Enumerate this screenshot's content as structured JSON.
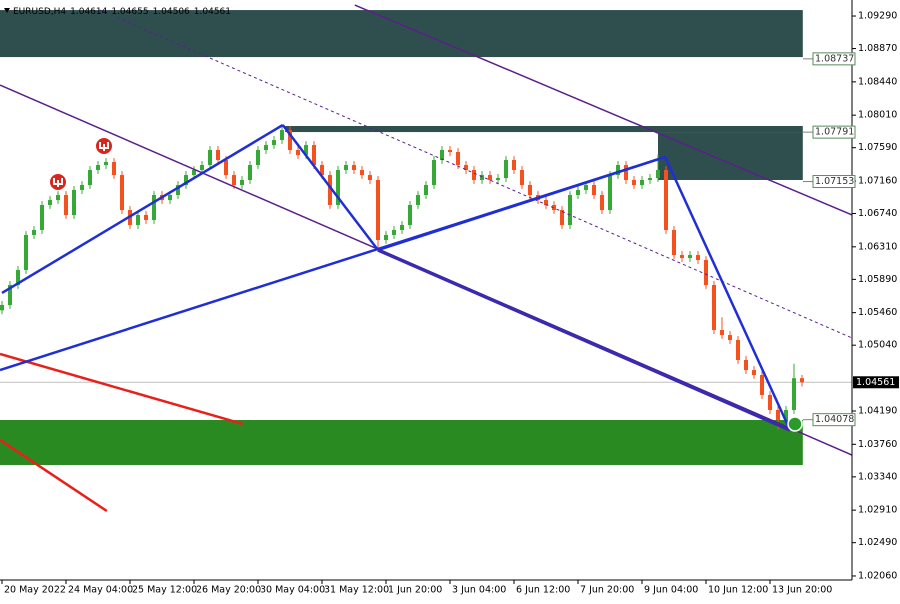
{
  "chart_data": {
    "type": "candlestick",
    "symbol": "EURUSD,H4",
    "up_color": "#36a836",
    "down_color": "#f4511e",
    "xlim": [
      -0.25,
      106.25
    ],
    "ylim": [
      1.02008,
      1.09497
    ],
    "xticks": [
      {
        "value": 0,
        "label": "20 May 2022"
      },
      {
        "value": 8,
        "label": "24 May 04:00"
      },
      {
        "value": 16,
        "label": "25 May 12:00"
      },
      {
        "value": 24,
        "label": "26 May 20:00"
      },
      {
        "value": 32,
        "label": "30 May 04:00"
      },
      {
        "value": 40,
        "label": "31 May 12:00"
      },
      {
        "value": 48,
        "label": "1 Jun 20:00"
      },
      {
        "value": 56,
        "label": "3 Jun 04:00"
      },
      {
        "value": 64,
        "label": "6 Jun 12:00"
      },
      {
        "value": 72,
        "label": "7 Jun 20:00"
      },
      {
        "value": 80,
        "label": "9 Jun 04:00"
      },
      {
        "value": 88,
        "label": "10 Jun 12:00"
      },
      {
        "value": 96,
        "label": "13 Jun 20:00"
      }
    ],
    "yticks": [
      {
        "value": 1.0929,
        "label": "1.09290"
      },
      {
        "value": 1.0887,
        "label": "1.08870"
      },
      {
        "value": 1.0844,
        "label": "1.08440"
      },
      {
        "value": 1.0801,
        "label": "1.08010"
      },
      {
        "value": 1.0759,
        "label": "1.07590"
      },
      {
        "value": 1.0716,
        "label": "1.07160"
      },
      {
        "value": 1.0674,
        "label": "1.06740"
      },
      {
        "value": 1.0631,
        "label": "1.06310"
      },
      {
        "value": 1.0589,
        "label": "1.05890"
      },
      {
        "value": 1.0546,
        "label": "1.05460"
      },
      {
        "value": 1.0504,
        "label": "1.05040"
      },
      {
        "value": 1.0419,
        "label": "1.04190"
      },
      {
        "value": 1.0376,
        "label": "1.03760"
      },
      {
        "value": 1.0334,
        "label": "1.03340"
      },
      {
        "value": 1.0291,
        "label": "1.02910"
      },
      {
        "value": 1.0249,
        "label": "1.02490"
      },
      {
        "value": 1.0206,
        "label": "1.02060"
      }
    ],
    "open": [
      1.0549,
      1.05559,
      1.05817,
      1.06011,
      1.06463,
      1.06527,
      1.0685,
      1.06914,
      1.06979,
      1.06721,
      1.07044,
      1.07108,
      1.07302,
      1.07366,
      1.07405,
      1.07237,
      1.06785,
      1.06592,
      1.06721,
      1.06656,
      1.06979,
      1.06914,
      1.06979,
      1.07108,
      1.07237,
      1.07302,
      1.07366,
      1.0756,
      1.07431,
      1.07237,
      1.07108,
      1.07173,
      1.07366,
      1.0756,
      1.07624,
      1.07689,
      1.07818,
      1.0756,
      1.07495,
      1.07624,
      1.07366,
      1.07237,
      1.0685,
      1.07302,
      1.07366,
      1.07302,
      1.07237,
      1.07173,
      1.06398,
      1.06463,
      1.06527,
      1.06592,
      1.0685,
      1.06979,
      1.07108,
      1.07431,
      1.0756,
      1.07534,
      1.07366,
      1.07302,
      1.07173,
      1.07237,
      1.07173,
      1.07198,
      1.07431,
      1.07302,
      1.07108,
      1.06979,
      1.06914,
      1.0685,
      1.06785,
      1.06592,
      1.06979,
      1.07044,
      1.07108,
      1.06979,
      1.06785,
      1.07237,
      1.07366,
      1.07173,
      1.07108,
      1.07173,
      1.07198,
      1.07302,
      1.06527,
      1.06204,
      1.06166,
      1.06204,
      1.0614,
      1.05817,
      1.05236,
      1.05171,
      1.05107,
      1.04849,
      1.04719,
      1.04655,
      1.04397,
      1.04203,
      1.04074,
      1.04203,
      1.04614
    ],
    "high": [
      1.0561,
      1.05867,
      1.06061,
      1.06513,
      1.06577,
      1.069,
      1.06964,
      1.07029,
      1.07029,
      1.07094,
      1.07158,
      1.07352,
      1.07416,
      1.07455,
      1.07455,
      1.07287,
      1.06835,
      1.06771,
      1.06771,
      1.07029,
      1.07029,
      1.07029,
      1.07158,
      1.07287,
      1.07352,
      1.07416,
      1.0761,
      1.0761,
      1.07481,
      1.07287,
      1.07223,
      1.07416,
      1.0761,
      1.07674,
      1.07739,
      1.07868,
      1.07868,
      1.0761,
      1.07674,
      1.07674,
      1.07416,
      1.07287,
      1.07352,
      1.07416,
      1.07416,
      1.07352,
      1.07287,
      1.07223,
      1.06513,
      1.06577,
      1.06642,
      1.069,
      1.07029,
      1.07158,
      1.07481,
      1.0761,
      1.0761,
      1.07584,
      1.07416,
      1.07352,
      1.07287,
      1.07287,
      1.07248,
      1.07481,
      1.07481,
      1.07352,
      1.07158,
      1.07029,
      1.06964,
      1.069,
      1.06835,
      1.07029,
      1.07094,
      1.07158,
      1.07158,
      1.07029,
      1.07287,
      1.07416,
      1.07416,
      1.07223,
      1.07223,
      1.07248,
      1.075,
      1.07352,
      1.06577,
      1.06254,
      1.06254,
      1.06254,
      1.0619,
      1.05867,
      1.054,
      1.05221,
      1.05157,
      1.04899,
      1.04769,
      1.04705,
      1.04447,
      1.04253,
      1.04253,
      1.048,
      1.04655
    ],
    "low": [
      1.0544,
      1.05509,
      1.05767,
      1.05961,
      1.06413,
      1.06477,
      1.068,
      1.06864,
      1.06671,
      1.06671,
      1.06994,
      1.07058,
      1.07252,
      1.07316,
      1.07187,
      1.06735,
      1.06542,
      1.06542,
      1.06606,
      1.06606,
      1.06864,
      1.06864,
      1.06929,
      1.07058,
      1.07187,
      1.07252,
      1.07316,
      1.07381,
      1.07187,
      1.07058,
      1.07058,
      1.07123,
      1.07316,
      1.0751,
      1.07574,
      1.07639,
      1.0751,
      1.07445,
      1.07445,
      1.07316,
      1.07187,
      1.068,
      1.068,
      1.07252,
      1.07252,
      1.07187,
      1.07123,
      1.0627,
      1.06348,
      1.06413,
      1.06477,
      1.06542,
      1.068,
      1.06929,
      1.07058,
      1.07381,
      1.07484,
      1.07316,
      1.07252,
      1.07123,
      1.07123,
      1.07123,
      1.07123,
      1.07148,
      1.07252,
      1.07058,
      1.06929,
      1.06864,
      1.068,
      1.06735,
      1.06542,
      1.06542,
      1.06929,
      1.06994,
      1.06929,
      1.06735,
      1.06735,
      1.07187,
      1.07123,
      1.07058,
      1.07058,
      1.07123,
      1.07148,
      1.06477,
      1.06154,
      1.06116,
      1.06116,
      1.0609,
      1.05767,
      1.05186,
      1.05121,
      1.05057,
      1.04799,
      1.04669,
      1.04605,
      1.04347,
      1.04153,
      1.0395,
      1.04024,
      1.04153,
      1.04506
    ],
    "close": [
      1.05559,
      1.05817,
      1.06011,
      1.06463,
      1.06527,
      1.0685,
      1.06914,
      1.06979,
      1.06721,
      1.07044,
      1.07108,
      1.07302,
      1.07366,
      1.07405,
      1.07237,
      1.06785,
      1.06592,
      1.06721,
      1.06656,
      1.06979,
      1.06914,
      1.06979,
      1.07108,
      1.07237,
      1.07302,
      1.07366,
      1.0756,
      1.07431,
      1.07237,
      1.07108,
      1.07173,
      1.07366,
      1.0756,
      1.07624,
      1.07689,
      1.07818,
      1.0756,
      1.07495,
      1.07624,
      1.07366,
      1.07237,
      1.0685,
      1.07302,
      1.07366,
      1.07302,
      1.07237,
      1.07173,
      1.06398,
      1.06463,
      1.06527,
      1.06592,
      1.0685,
      1.06979,
      1.07108,
      1.07431,
      1.0756,
      1.07534,
      1.07366,
      1.07302,
      1.07173,
      1.07237,
      1.07173,
      1.07198,
      1.07431,
      1.07302,
      1.07108,
      1.06979,
      1.06914,
      1.0685,
      1.06785,
      1.06592,
      1.06979,
      1.07044,
      1.07108,
      1.06979,
      1.06785,
      1.07237,
      1.07366,
      1.07173,
      1.07108,
      1.07173,
      1.07198,
      1.07302,
      1.06527,
      1.06204,
      1.06166,
      1.06204,
      1.0614,
      1.05817,
      1.05236,
      1.05171,
      1.05107,
      1.04849,
      1.04719,
      1.04655,
      1.04397,
      1.04203,
      1.04074,
      1.04203,
      1.04614,
      1.04561
    ],
    "zones": [
      {
        "x": [
          -0.25,
          100.1
        ],
        "y": [
          1.09367,
          1.0876
        ],
        "color": "#2f4f4f"
      },
      {
        "x": [
          35.4,
          100.1
        ],
        "y": [
          1.0787,
          1.07792
        ],
        "color": "#2f4f4f"
      },
      {
        "x": [
          82,
          100.1
        ],
        "y": [
          1.07792,
          1.07173
        ],
        "color": "#2f4f4f"
      },
      {
        "x": [
          -0.25,
          100.1
        ],
        "y": [
          1.04074,
          1.03493
        ],
        "color": "#2a8a22"
      }
    ],
    "lines": [
      {
        "x": [
          -0.25,
          106.25
        ],
        "y": [
          1.08399,
          1.03622
        ],
        "color": "#5b1f8a",
        "width": 1.5,
        "dashed": false
      },
      {
        "x": [
          44.1,
          106.25
        ],
        "y": [
          1.09432,
          1.06721
        ],
        "color": "#5b1f8a",
        "width": 1.5,
        "dashed": false
      },
      {
        "x": [
          12.25,
          106.25
        ],
        "y": [
          1.09367,
          1.05133
        ],
        "color": "#5b1f8a",
        "width": 1,
        "dashed": true
      },
      {
        "x": [
          -0.25,
          30.1
        ],
        "y": [
          1.04926,
          1.04023
        ],
        "color": "#e8201a",
        "width": 2.5,
        "dashed": false
      },
      {
        "x": [
          -0.25,
          13.1
        ],
        "y": [
          1.03816,
          1.02899
        ],
        "color": "#e8201a",
        "width": 2.5,
        "dashed": false
      },
      {
        "x": [
          0,
          35.1
        ],
        "y": [
          1.05714,
          1.07883
        ],
        "color": "#1f2fd6",
        "width": 2.5,
        "dashed": false
      },
      {
        "x": [
          35.1,
          47
        ],
        "y": [
          1.07883,
          1.06269
        ],
        "color": "#1f2fd6",
        "width": 2.5,
        "dashed": false
      },
      {
        "x": [
          47,
          82.9
        ],
        "y": [
          1.06269,
          1.0747
        ],
        "color": "#1f2fd6",
        "width": 2.5,
        "dashed": false
      },
      {
        "x": [
          82.9,
          98.5
        ],
        "y": [
          1.0747,
          1.03945
        ],
        "color": "#1f2fd6",
        "width": 2.5,
        "dashed": false
      },
      {
        "x": [
          -0.25,
          82.9
        ],
        "y": [
          1.04719,
          1.0747
        ],
        "color": "#1f2fd6",
        "width": 2.5,
        "dashed": false
      },
      {
        "x": [
          47,
          98.5
        ],
        "y": [
          1.06269,
          1.03945
        ],
        "color": "#3a2ab0",
        "width": 3.5,
        "dashed": false
      }
    ],
    "levels": [
      1.08737,
      1.07791,
      1.07153,
      1.04078
    ],
    "price_line": true
  }
}
